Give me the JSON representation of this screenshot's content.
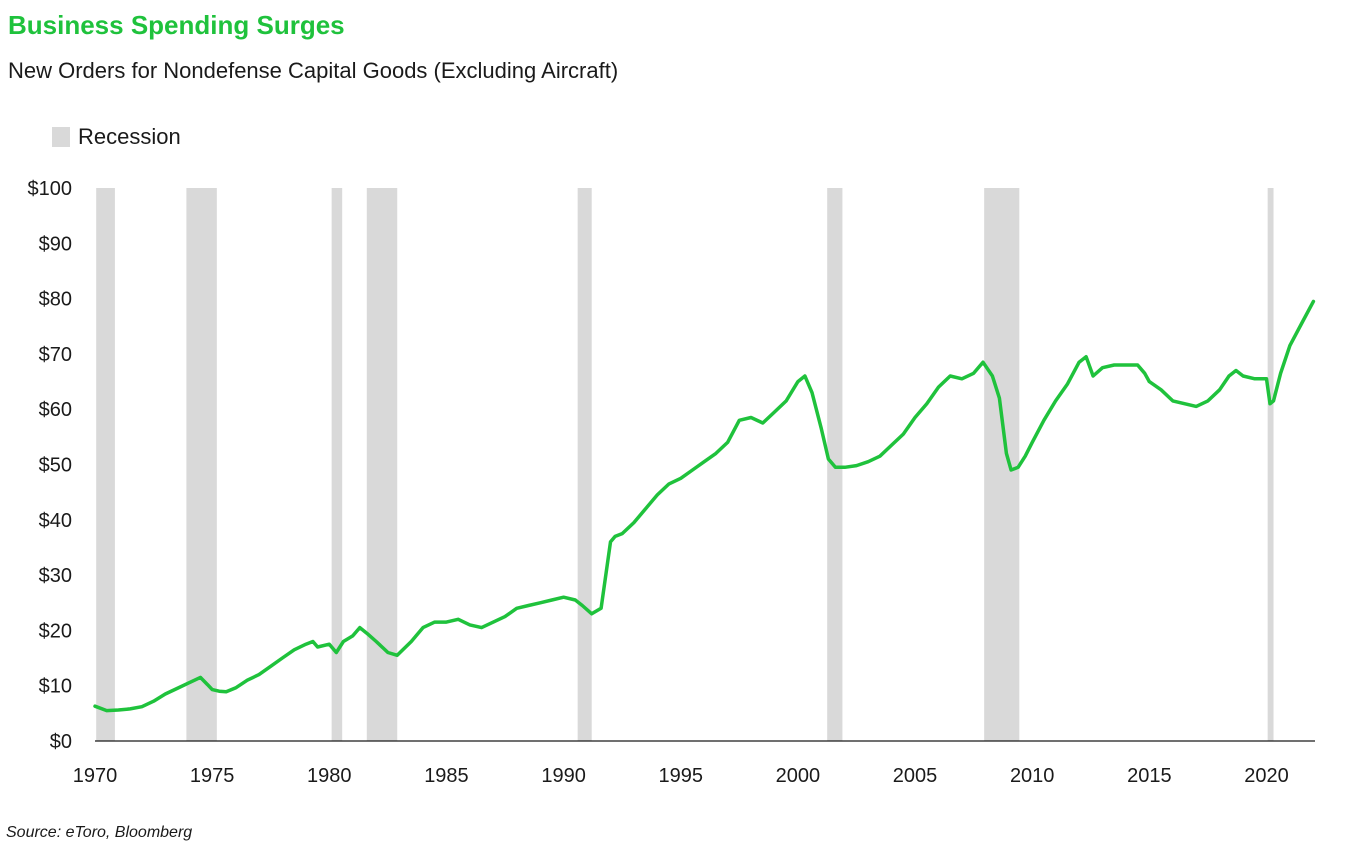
{
  "header": {
    "title": "Business Spending Surges",
    "subtitle": "New Orders for Nondefense Capital Goods (Excluding Aircraft)"
  },
  "legend": {
    "recession_label": "Recession"
  },
  "footer": {
    "source": "Source: eToro, Bloomberg"
  },
  "colors": {
    "line": "#1fc23c",
    "recession": "#d9d9d9",
    "title": "#1fc23c"
  },
  "chart_data": {
    "type": "line",
    "title": "Business Spending Surges",
    "subtitle": "New Orders for Nondefense Capital Goods (Excluding Aircraft)",
    "xlim": [
      1970,
      2022.2
    ],
    "ylim": [
      0,
      100
    ],
    "y_ticks": [
      {
        "value": 0,
        "label": "$0"
      },
      {
        "value": 10,
        "label": "$10"
      },
      {
        "value": 20,
        "label": "$20"
      },
      {
        "value": 30,
        "label": "$30"
      },
      {
        "value": 40,
        "label": "$40"
      },
      {
        "value": 50,
        "label": "$50"
      },
      {
        "value": 60,
        "label": "$60"
      },
      {
        "value": 70,
        "label": "$70"
      },
      {
        "value": 80,
        "label": "$80"
      },
      {
        "value": 90,
        "label": "$90"
      },
      {
        "value": 100,
        "label": "$100"
      }
    ],
    "x_ticks": [
      {
        "value": 1970,
        "label": "1970"
      },
      {
        "value": 1975,
        "label": "1975"
      },
      {
        "value": 1980,
        "label": "1980"
      },
      {
        "value": 1985,
        "label": "1985"
      },
      {
        "value": 1990,
        "label": "1990"
      },
      {
        "value": 1995,
        "label": "1995"
      },
      {
        "value": 2000,
        "label": "2000"
      },
      {
        "value": 2005,
        "label": "2005"
      },
      {
        "value": 2010,
        "label": "2010"
      },
      {
        "value": 2015,
        "label": "2015"
      },
      {
        "value": 2020,
        "label": "2020"
      }
    ],
    "grid": false,
    "legend_position": "top-left",
    "recessions": [
      {
        "start": 1970.05,
        "end": 1970.85
      },
      {
        "start": 1973.9,
        "end": 1975.2
      },
      {
        "start": 1980.1,
        "end": 1980.55
      },
      {
        "start": 1981.6,
        "end": 1982.9
      },
      {
        "start": 1990.6,
        "end": 1991.2
      },
      {
        "start": 2001.25,
        "end": 2001.9
      },
      {
        "start": 2007.95,
        "end": 2009.45
      },
      {
        "start": 2020.05,
        "end": 2020.3
      }
    ],
    "series": [
      {
        "x": [
          1970.0,
          1970.5,
          1971.0,
          1971.5,
          1972.0,
          1972.5,
          1973.0,
          1973.5,
          1974.0,
          1974.5,
          1974.8,
          1975.0,
          1975.3,
          1975.6,
          1976.0,
          1976.5,
          1977.0,
          1977.5,
          1978.0,
          1978.5,
          1979.0,
          1979.3,
          1979.5,
          1980.0,
          1980.3,
          1980.6,
          1981.0,
          1981.3,
          1981.6,
          1982.0,
          1982.5,
          1982.9,
          1983.5,
          1984.0,
          1984.5,
          1985.0,
          1985.5,
          1986.0,
          1986.5,
          1987.0,
          1987.5,
          1988.0,
          1988.5,
          1989.0,
          1989.5,
          1990.0,
          1990.5,
          1990.8,
          1991.2,
          1991.6,
          1992.0,
          1992.2,
          1992.5,
          1993.0,
          1993.5,
          1994.0,
          1994.5,
          1995.0,
          1995.5,
          1996.0,
          1996.5,
          1997.0,
          1997.5,
          1998.0,
          1998.5,
          1999.0,
          1999.5,
          2000.0,
          2000.3,
          2000.6,
          2001.0,
          2001.3,
          2001.6,
          2002.0,
          2002.5,
          2003.0,
          2003.5,
          2004.0,
          2004.5,
          2005.0,
          2005.5,
          2006.0,
          2006.5,
          2007.0,
          2007.5,
          2007.9,
          2008.3,
          2008.6,
          2008.9,
          2009.1,
          2009.4,
          2009.7,
          2010.0,
          2010.5,
          2011.0,
          2011.5,
          2012.0,
          2012.3,
          2012.6,
          2013.0,
          2013.5,
          2014.0,
          2014.5,
          2014.8,
          2015.0,
          2015.5,
          2016.0,
          2016.5,
          2017.0,
          2017.5,
          2018.0,
          2018.4,
          2018.7,
          2019.0,
          2019.5,
          2020.0,
          2020.15,
          2020.3,
          2020.6,
          2021.0,
          2021.5,
          2022.0
        ],
        "values": [
          6.3,
          5.5,
          5.6,
          5.8,
          6.2,
          7.2,
          8.5,
          9.5,
          10.5,
          11.5,
          10.2,
          9.3,
          9.0,
          8.9,
          9.6,
          11.0,
          12.0,
          13.5,
          15.0,
          16.5,
          17.5,
          18.0,
          17.0,
          17.5,
          16.0,
          18.0,
          19.0,
          20.5,
          19.5,
          18.0,
          16.0,
          15.5,
          18.0,
          20.5,
          21.5,
          21.5,
          22.0,
          21.0,
          20.5,
          21.5,
          22.5,
          24.0,
          24.5,
          25.0,
          25.5,
          26.0,
          25.5,
          24.5,
          23.0,
          24.0,
          36.0,
          37.0,
          37.5,
          39.5,
          42.0,
          44.5,
          46.5,
          47.5,
          49.0,
          50.5,
          52.0,
          54.0,
          58.0,
          58.5,
          57.5,
          59.5,
          61.5,
          65.0,
          66.0,
          63.0,
          56.5,
          51.0,
          49.5,
          49.5,
          49.8,
          50.5,
          51.5,
          53.5,
          55.5,
          58.5,
          61.0,
          64.0,
          66.0,
          65.5,
          66.5,
          68.5,
          66.0,
          62.0,
          52.0,
          49.0,
          49.5,
          51.5,
          54.0,
          58.0,
          61.5,
          64.5,
          68.5,
          69.5,
          66.0,
          67.5,
          68.0,
          68.0,
          68.0,
          66.5,
          65.0,
          63.5,
          61.5,
          61.0,
          60.5,
          61.5,
          63.5,
          66.0,
          67.0,
          66.0,
          65.5,
          65.5,
          61.0,
          61.5,
          66.5,
          71.5,
          75.5,
          79.5
        ]
      }
    ]
  }
}
